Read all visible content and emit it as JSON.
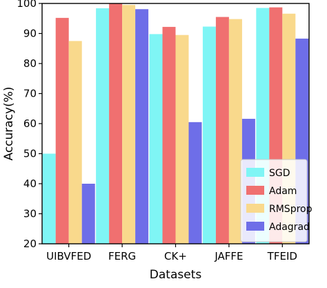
{
  "chart_data": {
    "type": "bar",
    "title": "",
    "xlabel": "Datasets",
    "ylabel": "Accuracy(%)",
    "ylim": [
      20,
      100
    ],
    "yticks": [
      20,
      30,
      40,
      50,
      60,
      70,
      80,
      90,
      100
    ],
    "categories": [
      "UIBVFED",
      "FERG",
      "CK+",
      "JAFFE",
      "TFEID"
    ],
    "series": [
      {
        "name": "SGD",
        "color": "#7ff5f5",
        "values": [
          50,
          98.4,
          89.8,
          92.3,
          98.5
        ]
      },
      {
        "name": "Adam",
        "color": "#f07070",
        "values": [
          95.2,
          99.9,
          92.2,
          95.5,
          98.7
        ]
      },
      {
        "name": "RMSprop",
        "color": "#f9d98c",
        "values": [
          87.5,
          99.5,
          89.5,
          94.8,
          96.6
        ]
      },
      {
        "name": "Adagrad",
        "color": "#6e6ee8",
        "values": [
          40,
          98.1,
          60.5,
          61.6,
          88.3
        ]
      }
    ],
    "grid": false,
    "legend_position": "bottom-right"
  }
}
